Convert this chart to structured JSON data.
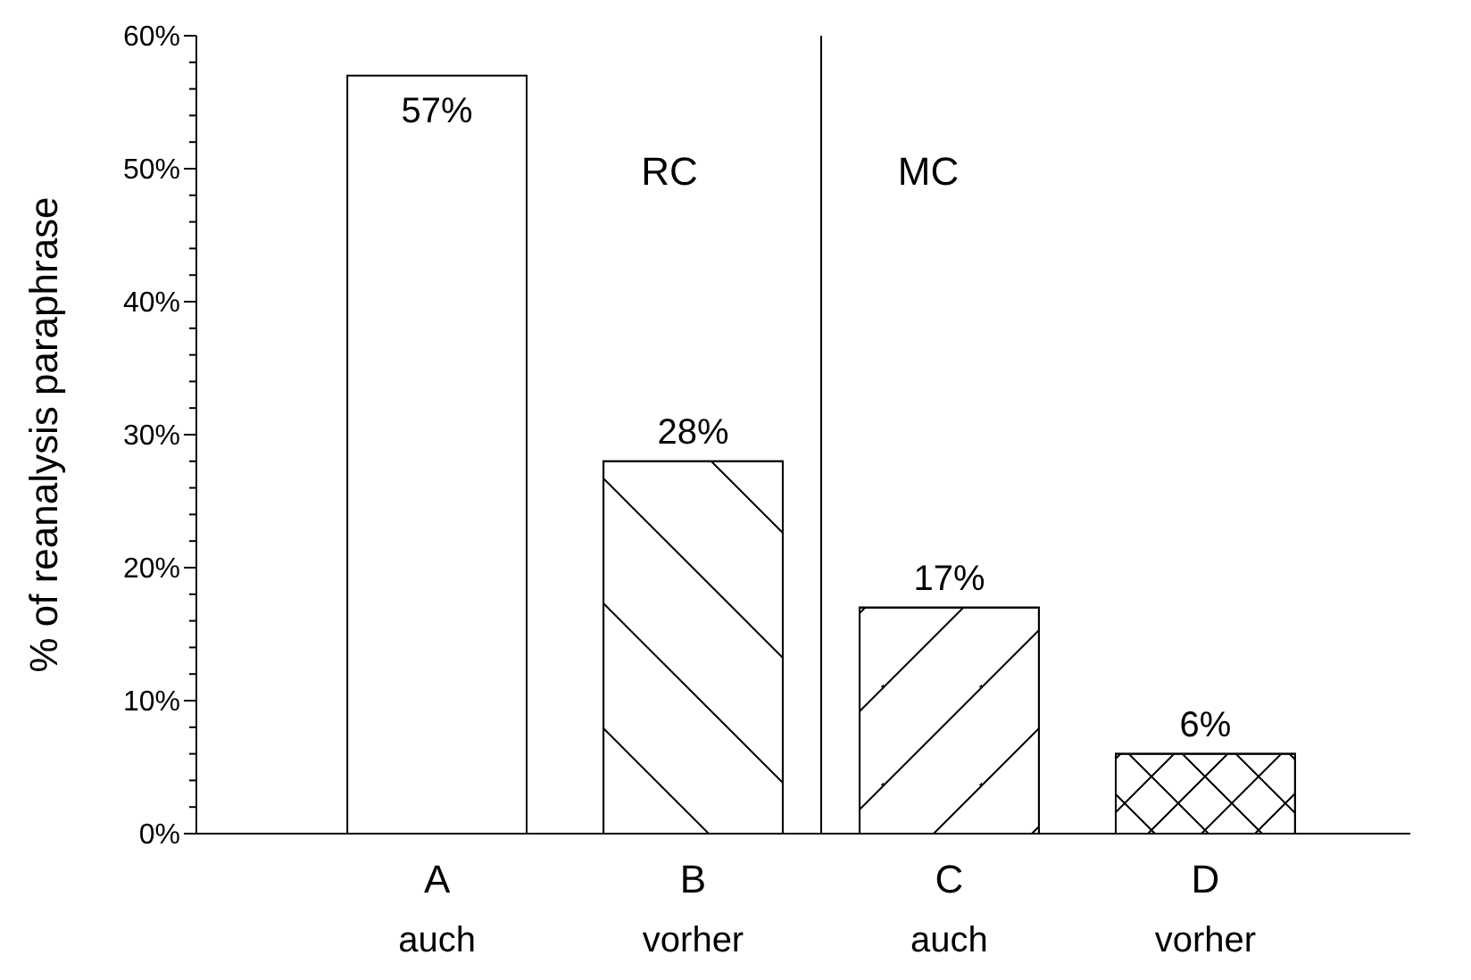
{
  "chart_data": {
    "type": "bar",
    "ylabel": "% of reanalysis paraphrase",
    "categories": [
      "A\nauch",
      "B\nvorher",
      "C\nauch",
      "D\nvorher"
    ],
    "values": [
      57,
      28,
      17,
      6
    ],
    "value_labels": [
      "57%",
      "28%",
      "17%",
      "6%"
    ],
    "color": "#ffffff",
    "ylim": [
      0,
      60
    ],
    "yticks": [
      {
        "value": 0,
        "label": "0%"
      },
      {
        "value": 2,
        "label": null
      },
      {
        "value": 4,
        "label": null
      },
      {
        "value": 6,
        "label": null
      },
      {
        "value": 8,
        "label": null
      },
      {
        "value": 10,
        "label": "10%"
      },
      {
        "value": 12,
        "label": null
      },
      {
        "value": 14,
        "label": null
      },
      {
        "value": 16,
        "label": null
      },
      {
        "value": 18,
        "label": null
      },
      {
        "value": 20,
        "label": "20%"
      },
      {
        "value": 22,
        "label": null
      },
      {
        "value": 24,
        "label": null
      },
      {
        "value": 26,
        "label": null
      },
      {
        "value": 28,
        "label": null
      },
      {
        "value": 30,
        "label": "30%"
      },
      {
        "value": 32,
        "label": null
      },
      {
        "value": 34,
        "label": null
      },
      {
        "value": 36,
        "label": null
      },
      {
        "value": 38,
        "label": null
      },
      {
        "value": 40,
        "label": "40%"
      },
      {
        "value": 42,
        "label": null
      },
      {
        "value": 44,
        "label": null
      },
      {
        "value": 46,
        "label": null
      },
      {
        "value": 48,
        "label": null
      },
      {
        "value": 50,
        "label": "50%"
      },
      {
        "value": 52,
        "label": null
      },
      {
        "value": 54,
        "label": null
      },
      {
        "value": 56,
        "label": null
      },
      {
        "value": 58,
        "label": null
      },
      {
        "value": 60,
        "label": "60%"
      }
    ],
    "annotations": [
      "RC",
      "MC"
    ],
    "grid": false
  }
}
